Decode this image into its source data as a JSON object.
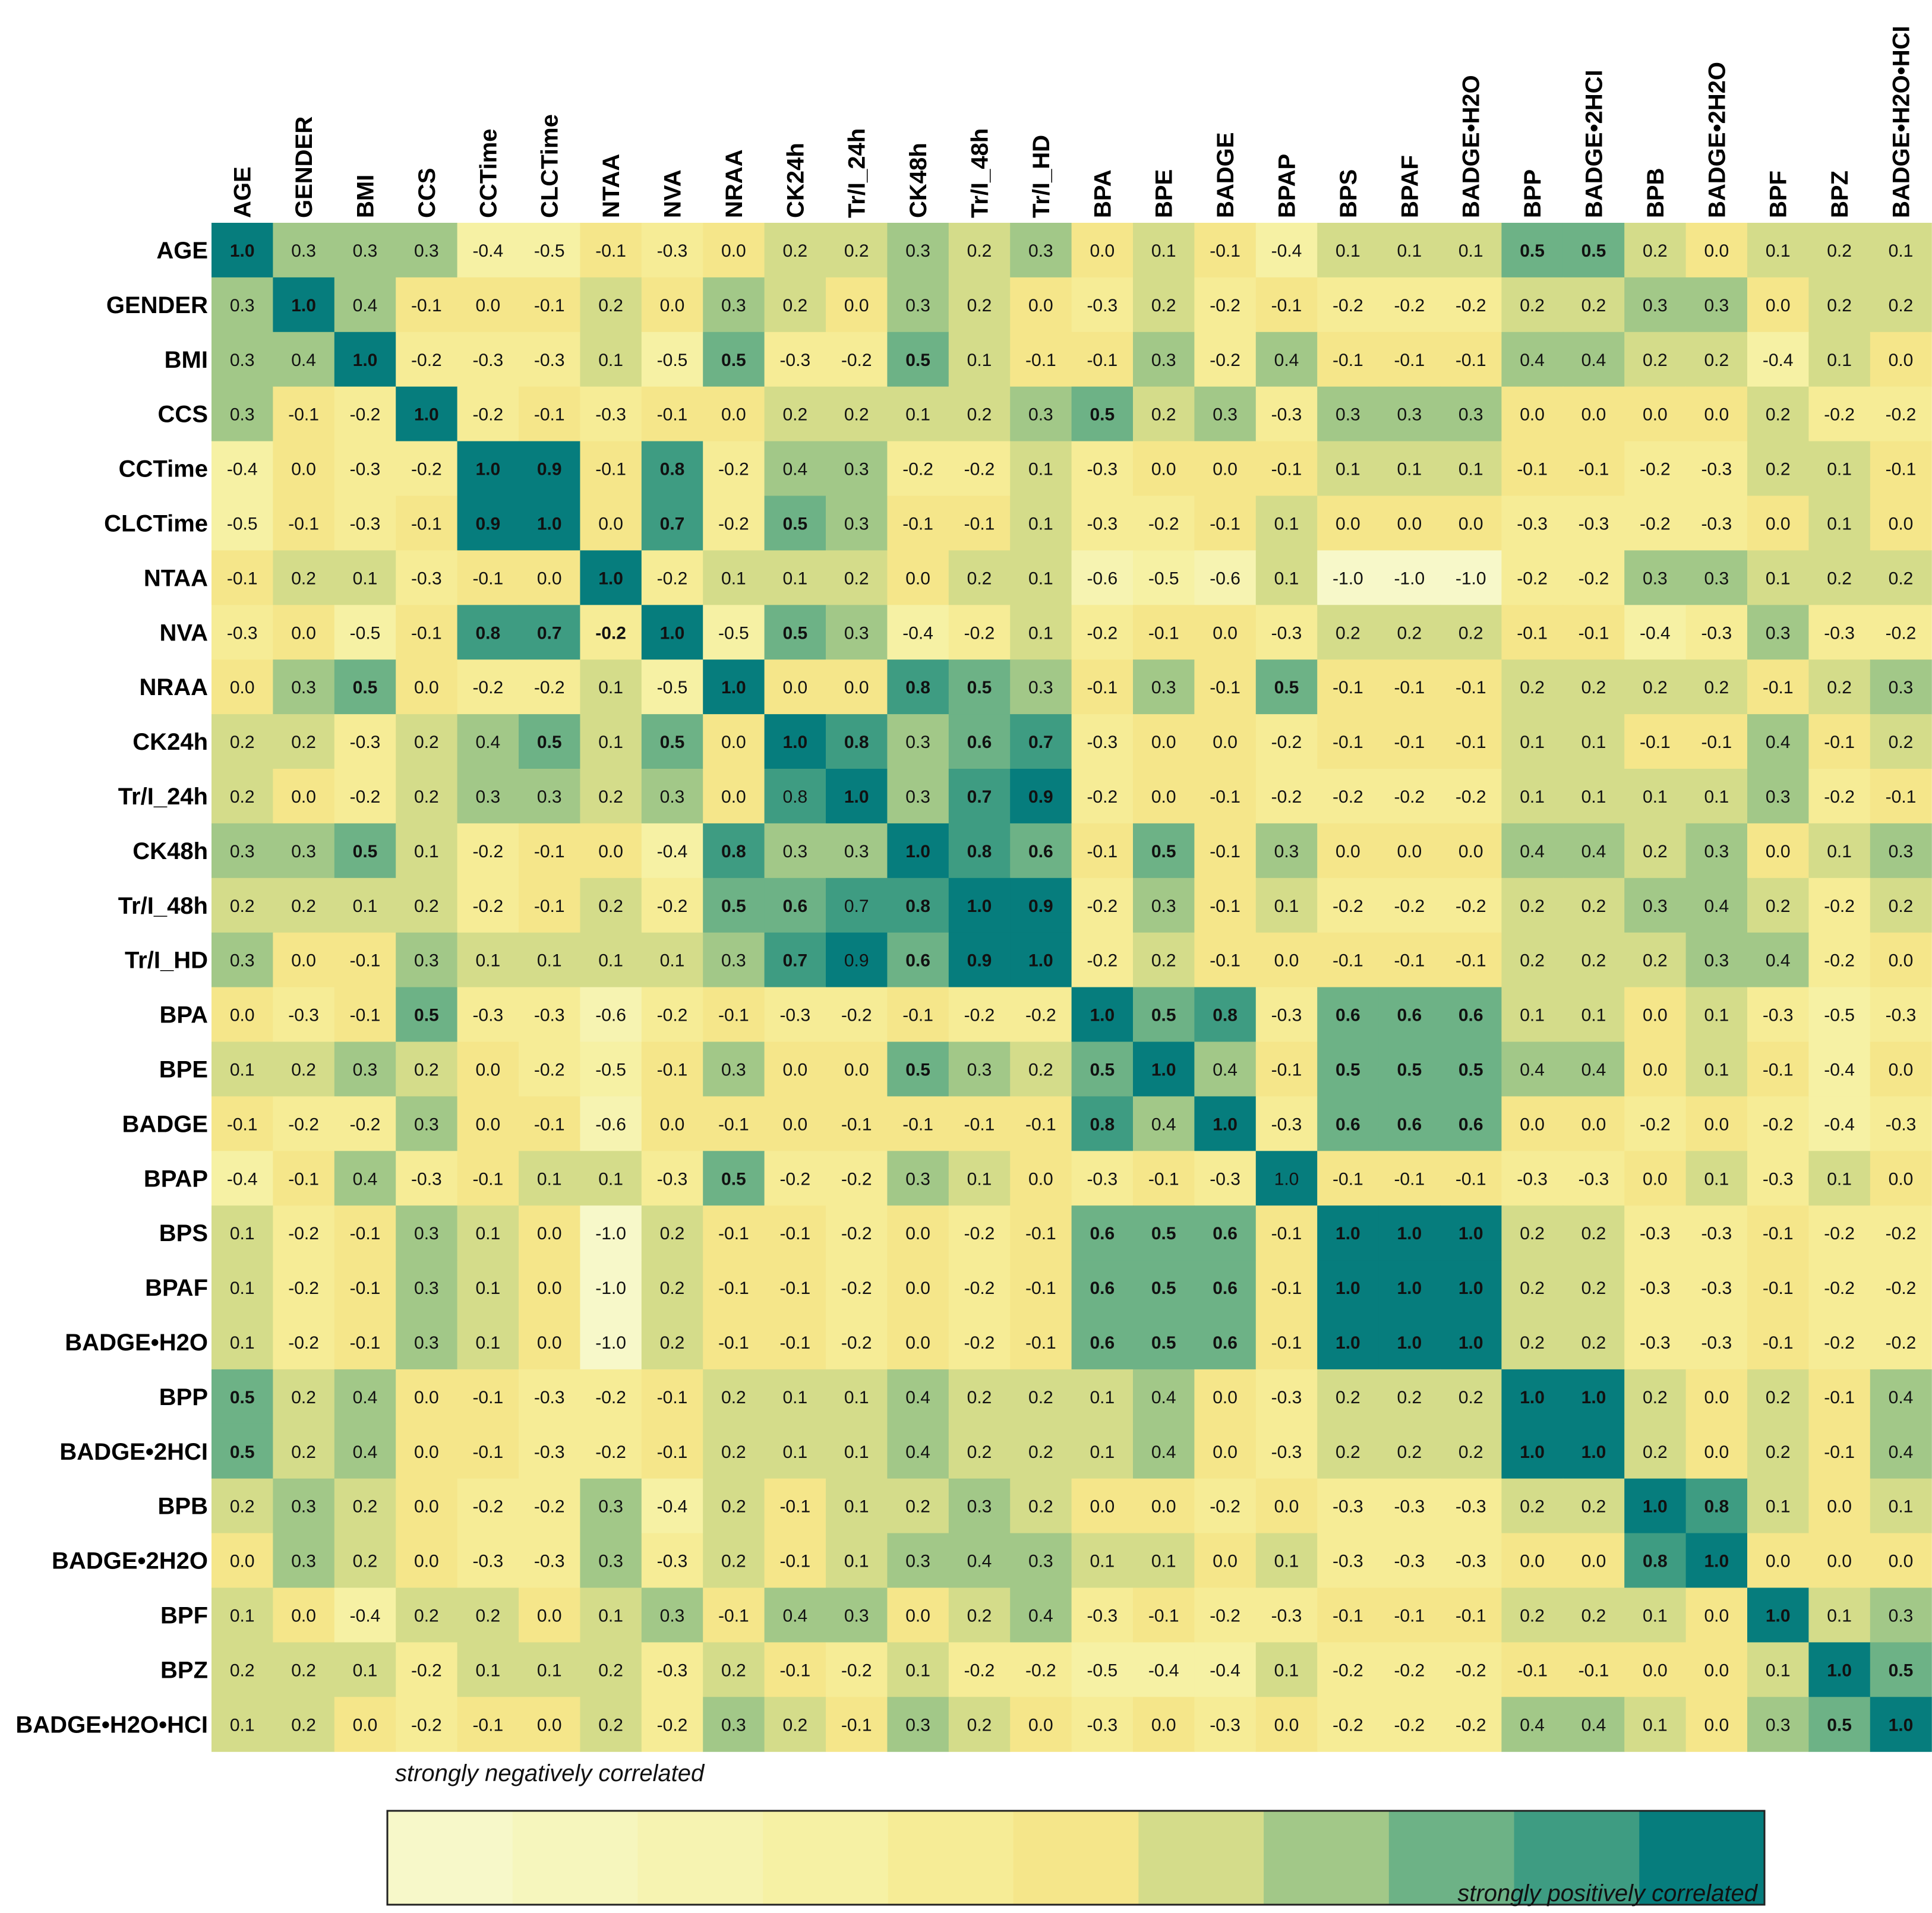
{
  "chart_data": {
    "type": "heatmap",
    "title": "",
    "variables": [
      "AGE",
      "GENDER",
      "BMI",
      "CCS",
      "CCTime",
      "CLCTime",
      "NTAA",
      "NVA",
      "NRAA",
      "CK24h",
      "Tr/I_24h",
      "CK48h",
      "Tr/I_48h",
      "Tr/I_HD",
      "BPA",
      "BPE",
      "BADGE",
      "BPAP",
      "BPS",
      "BPAF",
      "BADGE•H2O",
      "BPP",
      "BADGE•2HCI",
      "BPB",
      "BADGE•2H2O",
      "BPF",
      "BPZ",
      "BADGE•H2O•HCI"
    ],
    "values": [
      [
        1.0,
        0.3,
        0.3,
        0.3,
        -0.4,
        -0.5,
        -0.1,
        -0.3,
        0.0,
        0.2,
        0.2,
        0.3,
        0.2,
        0.3,
        0.0,
        0.1,
        -0.1,
        -0.4,
        0.1,
        0.1,
        0.1,
        0.5,
        0.5,
        0.2,
        0.0,
        0.1,
        0.2,
        0.1
      ],
      [
        0.3,
        1.0,
        0.4,
        -0.1,
        0.0,
        -0.1,
        0.2,
        0.0,
        0.3,
        0.2,
        0.0,
        0.3,
        0.2,
        0.0,
        -0.3,
        0.2,
        -0.2,
        -0.1,
        -0.2,
        -0.2,
        -0.2,
        0.2,
        0.2,
        0.3,
        0.3,
        0.0,
        0.2,
        0.2
      ],
      [
        0.3,
        0.4,
        1.0,
        -0.2,
        -0.3,
        -0.3,
        0.1,
        -0.5,
        0.5,
        -0.3,
        -0.2,
        0.5,
        0.1,
        -0.1,
        -0.1,
        0.3,
        -0.2,
        0.4,
        -0.1,
        -0.1,
        -0.1,
        0.4,
        0.4,
        0.2,
        0.2,
        -0.4,
        0.1,
        0.0
      ],
      [
        0.3,
        -0.1,
        -0.2,
        1.0,
        -0.2,
        -0.1,
        -0.3,
        -0.1,
        0.0,
        0.2,
        0.2,
        0.1,
        0.2,
        0.3,
        0.5,
        0.2,
        0.3,
        -0.3,
        0.3,
        0.3,
        0.3,
        0.0,
        0.0,
        0.0,
        0.0,
        0.2,
        -0.2,
        -0.2
      ],
      [
        -0.4,
        0.0,
        -0.3,
        -0.2,
        1.0,
        0.9,
        -0.1,
        0.8,
        -0.2,
        0.4,
        0.3,
        -0.2,
        -0.2,
        0.1,
        -0.3,
        0.0,
        0.0,
        -0.1,
        0.1,
        0.1,
        0.1,
        -0.1,
        -0.1,
        -0.2,
        -0.3,
        0.2,
        0.1,
        -0.1
      ],
      [
        -0.5,
        -0.1,
        -0.3,
        -0.1,
        0.9,
        1.0,
        0.0,
        0.7,
        -0.2,
        0.5,
        0.3,
        -0.1,
        -0.1,
        0.1,
        -0.3,
        -0.2,
        -0.1,
        0.1,
        0.0,
        0.0,
        0.0,
        -0.3,
        -0.3,
        -0.2,
        -0.3,
        0.0,
        0.1,
        0.0
      ],
      [
        -0.1,
        0.2,
        0.1,
        -0.3,
        -0.1,
        0.0,
        1.0,
        -0.2,
        0.1,
        0.1,
        0.2,
        0.0,
        0.2,
        0.1,
        -0.6,
        -0.5,
        -0.6,
        0.1,
        -1.0,
        -1.0,
        -1.0,
        -0.2,
        -0.2,
        0.3,
        0.3,
        0.1,
        0.2,
        0.2
      ],
      [
        -0.3,
        0.0,
        -0.5,
        -0.1,
        0.8,
        0.7,
        -0.2,
        1.0,
        -0.5,
        0.5,
        0.3,
        -0.4,
        -0.2,
        0.1,
        -0.2,
        -0.1,
        0.0,
        -0.3,
        0.2,
        0.2,
        0.2,
        -0.1,
        -0.1,
        -0.4,
        -0.3,
        0.3,
        -0.3,
        -0.2
      ],
      [
        0.0,
        0.3,
        0.5,
        0.0,
        -0.2,
        -0.2,
        0.1,
        -0.5,
        1.0,
        0.0,
        0.0,
        0.8,
        0.5,
        0.3,
        -0.1,
        0.3,
        -0.1,
        0.5,
        -0.1,
        -0.1,
        -0.1,
        0.2,
        0.2,
        0.2,
        0.2,
        -0.1,
        0.2,
        0.3
      ],
      [
        0.2,
        0.2,
        -0.3,
        0.2,
        0.4,
        0.5,
        0.1,
        0.5,
        0.0,
        1.0,
        0.8,
        0.3,
        0.6,
        0.7,
        -0.3,
        0.0,
        0.0,
        -0.2,
        -0.1,
        -0.1,
        -0.1,
        0.1,
        0.1,
        -0.1,
        -0.1,
        0.4,
        -0.1,
        0.2
      ],
      [
        0.2,
        0.0,
        -0.2,
        0.2,
        0.3,
        0.3,
        0.2,
        0.3,
        0.0,
        0.8,
        1.0,
        0.3,
        0.7,
        0.9,
        -0.2,
        0.0,
        -0.1,
        -0.2,
        -0.2,
        -0.2,
        -0.2,
        0.1,
        0.1,
        0.1,
        0.1,
        0.3,
        -0.2,
        -0.1
      ],
      [
        0.3,
        0.3,
        0.5,
        0.1,
        -0.2,
        -0.1,
        0.0,
        -0.4,
        0.8,
        0.3,
        0.3,
        1.0,
        0.8,
        0.6,
        -0.1,
        0.5,
        -0.1,
        0.3,
        0.0,
        0.0,
        0.0,
        0.4,
        0.4,
        0.2,
        0.3,
        0.0,
        0.1,
        0.3
      ],
      [
        0.2,
        0.2,
        0.1,
        0.2,
        -0.2,
        -0.1,
        0.2,
        -0.2,
        0.5,
        0.6,
        0.7,
        0.8,
        1.0,
        0.9,
        -0.2,
        0.3,
        -0.1,
        0.1,
        -0.2,
        -0.2,
        -0.2,
        0.2,
        0.2,
        0.3,
        0.4,
        0.2,
        -0.2,
        0.2
      ],
      [
        0.3,
        0.0,
        -0.1,
        0.3,
        0.1,
        0.1,
        0.1,
        0.1,
        0.3,
        0.7,
        0.9,
        0.6,
        0.9,
        1.0,
        -0.2,
        0.2,
        -0.1,
        0.0,
        -0.1,
        -0.1,
        -0.1,
        0.2,
        0.2,
        0.2,
        0.3,
        0.4,
        -0.2,
        0.0
      ],
      [
        0.0,
        -0.3,
        -0.1,
        0.5,
        -0.3,
        -0.3,
        -0.6,
        -0.2,
        -0.1,
        -0.3,
        -0.2,
        -0.1,
        -0.2,
        -0.2,
        1.0,
        0.5,
        0.8,
        -0.3,
        0.6,
        0.6,
        0.6,
        0.1,
        0.1,
        0.0,
        0.1,
        -0.3,
        -0.5,
        -0.3
      ],
      [
        0.1,
        0.2,
        0.3,
        0.2,
        0.0,
        -0.2,
        -0.5,
        -0.1,
        0.3,
        0.0,
        0.0,
        0.5,
        0.3,
        0.2,
        0.5,
        1.0,
        0.4,
        -0.1,
        0.5,
        0.5,
        0.5,
        0.4,
        0.4,
        0.0,
        0.1,
        -0.1,
        -0.4,
        0.0
      ],
      [
        -0.1,
        -0.2,
        -0.2,
        0.3,
        0.0,
        -0.1,
        -0.6,
        0.0,
        -0.1,
        0.0,
        -0.1,
        -0.1,
        -0.1,
        -0.1,
        0.8,
        0.4,
        1.0,
        -0.3,
        0.6,
        0.6,
        0.6,
        0.0,
        0.0,
        -0.2,
        0.0,
        -0.2,
        -0.4,
        -0.3
      ],
      [
        -0.4,
        -0.1,
        0.4,
        -0.3,
        -0.1,
        0.1,
        0.1,
        -0.3,
        0.5,
        -0.2,
        -0.2,
        0.3,
        0.1,
        0.0,
        -0.3,
        -0.1,
        -0.3,
        1.0,
        -0.1,
        -0.1,
        -0.1,
        -0.3,
        -0.3,
        0.0,
        0.1,
        -0.3,
        0.1,
        0.0
      ],
      [
        0.1,
        -0.2,
        -0.1,
        0.3,
        0.1,
        0.0,
        -1.0,
        0.2,
        -0.1,
        -0.1,
        -0.2,
        0.0,
        -0.2,
        -0.1,
        0.6,
        0.5,
        0.6,
        -0.1,
        1.0,
        1.0,
        1.0,
        0.2,
        0.2,
        -0.3,
        -0.3,
        -0.1,
        -0.2,
        -0.2
      ],
      [
        0.1,
        -0.2,
        -0.1,
        0.3,
        0.1,
        0.0,
        -1.0,
        0.2,
        -0.1,
        -0.1,
        -0.2,
        0.0,
        -0.2,
        -0.1,
        0.6,
        0.5,
        0.6,
        -0.1,
        1.0,
        1.0,
        1.0,
        0.2,
        0.2,
        -0.3,
        -0.3,
        -0.1,
        -0.2,
        -0.2
      ],
      [
        0.1,
        -0.2,
        -0.1,
        0.3,
        0.1,
        0.0,
        -1.0,
        0.2,
        -0.1,
        -0.1,
        -0.2,
        0.0,
        -0.2,
        -0.1,
        0.6,
        0.5,
        0.6,
        -0.1,
        1.0,
        1.0,
        1.0,
        0.2,
        0.2,
        -0.3,
        -0.3,
        -0.1,
        -0.2,
        -0.2
      ],
      [
        0.5,
        0.2,
        0.4,
        0.0,
        -0.1,
        -0.3,
        -0.2,
        -0.1,
        0.2,
        0.1,
        0.1,
        0.4,
        0.2,
        0.2,
        0.1,
        0.4,
        0.0,
        -0.3,
        0.2,
        0.2,
        0.2,
        1.0,
        1.0,
        0.2,
        0.0,
        0.2,
        -0.1,
        0.4
      ],
      [
        0.5,
        0.2,
        0.4,
        0.0,
        -0.1,
        -0.3,
        -0.2,
        -0.1,
        0.2,
        0.1,
        0.1,
        0.4,
        0.2,
        0.2,
        0.1,
        0.4,
        0.0,
        -0.3,
        0.2,
        0.2,
        0.2,
        1.0,
        1.0,
        0.2,
        0.0,
        0.2,
        -0.1,
        0.4
      ],
      [
        0.2,
        0.3,
        0.2,
        0.0,
        -0.2,
        -0.2,
        0.3,
        -0.4,
        0.2,
        -0.1,
        0.1,
        0.2,
        0.3,
        0.2,
        0.0,
        0.0,
        -0.2,
        0.0,
        -0.3,
        -0.3,
        -0.3,
        0.2,
        0.2,
        1.0,
        0.8,
        0.1,
        0.0,
        0.1
      ],
      [
        0.0,
        0.3,
        0.2,
        0.0,
        -0.3,
        -0.3,
        0.3,
        -0.3,
        0.2,
        -0.1,
        0.1,
        0.3,
        0.4,
        0.3,
        0.1,
        0.1,
        0.0,
        0.1,
        -0.3,
        -0.3,
        -0.3,
        0.0,
        0.0,
        0.8,
        1.0,
        0.0,
        0.0,
        0.0
      ],
      [
        0.1,
        0.0,
        -0.4,
        0.2,
        0.2,
        0.0,
        0.1,
        0.3,
        -0.1,
        0.4,
        0.3,
        0.0,
        0.2,
        0.4,
        -0.3,
        -0.1,
        -0.2,
        -0.3,
        -0.1,
        -0.1,
        -0.1,
        0.2,
        0.2,
        0.1,
        0.0,
        1.0,
        0.1,
        0.3
      ],
      [
        0.2,
        0.2,
        0.1,
        -0.2,
        0.1,
        0.1,
        0.2,
        -0.3,
        0.2,
        -0.1,
        -0.2,
        0.1,
        -0.2,
        -0.2,
        -0.5,
        -0.4,
        -0.4,
        0.1,
        -0.2,
        -0.2,
        -0.2,
        -0.1,
        -0.1,
        0.0,
        0.0,
        0.1,
        1.0,
        0.5
      ],
      [
        0.1,
        0.2,
        0.0,
        -0.2,
        -0.1,
        0.0,
        0.2,
        -0.2,
        0.3,
        0.2,
        -0.1,
        0.3,
        0.2,
        0.0,
        -0.3,
        0.0,
        -0.3,
        0.0,
        -0.2,
        -0.2,
        -0.2,
        0.4,
        0.4,
        0.1,
        0.0,
        0.3,
        0.5,
        1.0
      ]
    ],
    "bold_cells": [
      [
        0,
        0
      ],
      [
        0,
        21
      ],
      [
        0,
        22
      ],
      [
        1,
        1
      ],
      [
        2,
        2
      ],
      [
        2,
        8
      ],
      [
        2,
        11
      ],
      [
        3,
        3
      ],
      [
        3,
        14
      ],
      [
        4,
        4
      ],
      [
        4,
        5
      ],
      [
        4,
        7
      ],
      [
        5,
        4
      ],
      [
        5,
        5
      ],
      [
        5,
        7
      ],
      [
        5,
        9
      ],
      [
        6,
        6
      ],
      [
        7,
        4
      ],
      [
        7,
        5
      ],
      [
        7,
        6
      ],
      [
        7,
        7
      ],
      [
        7,
        9
      ],
      [
        8,
        2
      ],
      [
        8,
        8
      ],
      [
        8,
        11
      ],
      [
        8,
        12
      ],
      [
        8,
        17
      ],
      [
        9,
        5
      ],
      [
        9,
        7
      ],
      [
        9,
        9
      ],
      [
        9,
        10
      ],
      [
        9,
        12
      ],
      [
        9,
        13
      ],
      [
        10,
        10
      ],
      [
        10,
        12
      ],
      [
        10,
        13
      ],
      [
        11,
        2
      ],
      [
        11,
        8
      ],
      [
        11,
        11
      ],
      [
        11,
        12
      ],
      [
        11,
        13
      ],
      [
        11,
        15
      ],
      [
        12,
        8
      ],
      [
        12,
        9
      ],
      [
        12,
        11
      ],
      [
        12,
        12
      ],
      [
        12,
        13
      ],
      [
        13,
        9
      ],
      [
        13,
        11
      ],
      [
        13,
        12
      ],
      [
        13,
        13
      ],
      [
        14,
        3
      ],
      [
        14,
        14
      ],
      [
        14,
        15
      ],
      [
        14,
        16
      ],
      [
        14,
        18
      ],
      [
        14,
        19
      ],
      [
        14,
        20
      ],
      [
        15,
        11
      ],
      [
        15,
        14
      ],
      [
        15,
        15
      ],
      [
        15,
        18
      ],
      [
        15,
        19
      ],
      [
        15,
        20
      ],
      [
        16,
        14
      ],
      [
        16,
        16
      ],
      [
        16,
        18
      ],
      [
        16,
        19
      ],
      [
        16,
        20
      ],
      [
        17,
        8
      ],
      [
        18,
        14
      ],
      [
        18,
        15
      ],
      [
        18,
        16
      ],
      [
        18,
        18
      ],
      [
        18,
        19
      ],
      [
        18,
        20
      ],
      [
        19,
        14
      ],
      [
        19,
        15
      ],
      [
        19,
        16
      ],
      [
        19,
        18
      ],
      [
        19,
        19
      ],
      [
        19,
        20
      ],
      [
        20,
        14
      ],
      [
        20,
        15
      ],
      [
        20,
        16
      ],
      [
        20,
        18
      ],
      [
        20,
        19
      ],
      [
        20,
        20
      ],
      [
        21,
        0
      ],
      [
        21,
        21
      ],
      [
        21,
        22
      ],
      [
        22,
        0
      ],
      [
        22,
        21
      ],
      [
        22,
        22
      ],
      [
        23,
        23
      ],
      [
        23,
        24
      ],
      [
        24,
        23
      ],
      [
        24,
        24
      ],
      [
        25,
        25
      ],
      [
        26,
        26
      ],
      [
        26,
        27
      ],
      [
        27,
        26
      ],
      [
        27,
        27
      ]
    ],
    "value_range": [
      -1.0,
      1.0
    ],
    "colorbar": {
      "colors": [
        "#f7f8c9",
        "#f6f6bd",
        "#f6f3b1",
        "#f6f1a4",
        "#f6ec96",
        "#f5e68a",
        "#d4dc8a",
        "#a2c888",
        "#6db286",
        "#3e9c82",
        "#067d7d"
      ],
      "label_negative": "strongly negatively correlated",
      "label_positive": "strongly positively correlated"
    }
  }
}
